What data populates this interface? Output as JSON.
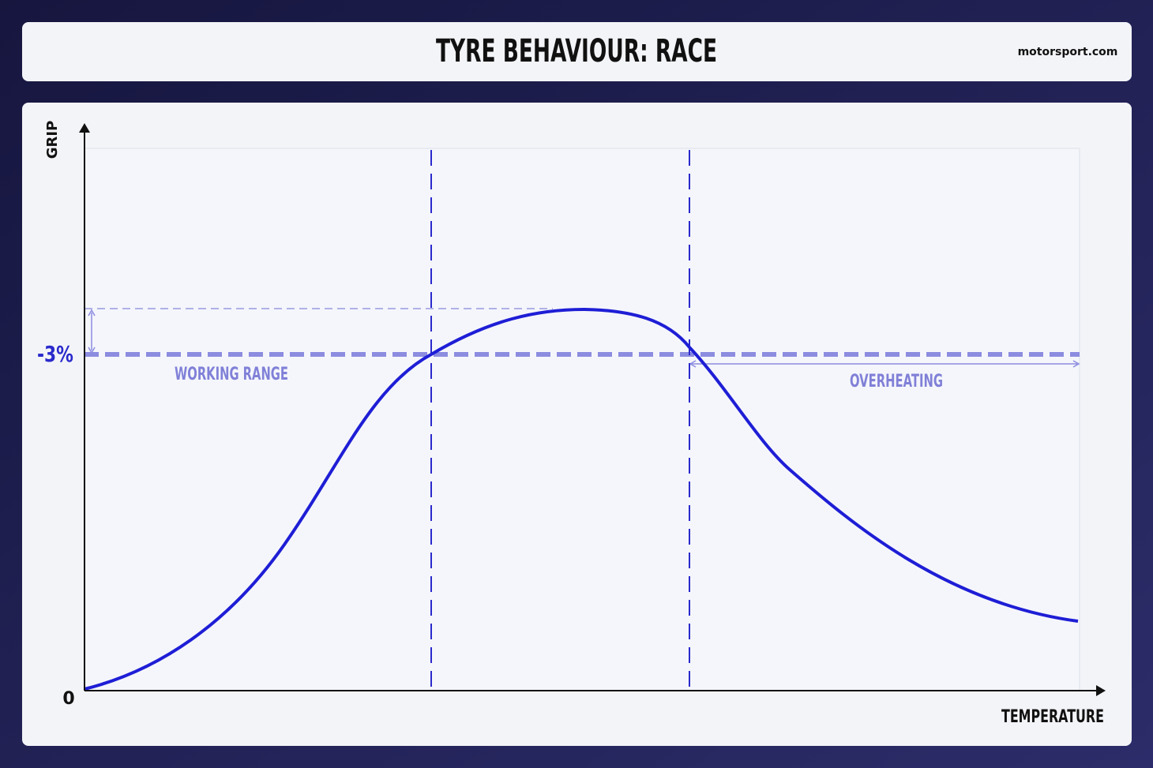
{
  "header": {
    "title": "TYRE BEHAVIOUR: RACE",
    "brand": "motorsport.com"
  },
  "axes": {
    "y_label": "GRIP",
    "x_label": "TEMPERATURE",
    "origin_label": "0",
    "level_label": "-3%"
  },
  "annotations": {
    "working_range": "WORKING RANGE",
    "overheating": "OVERHEATING"
  }
}
